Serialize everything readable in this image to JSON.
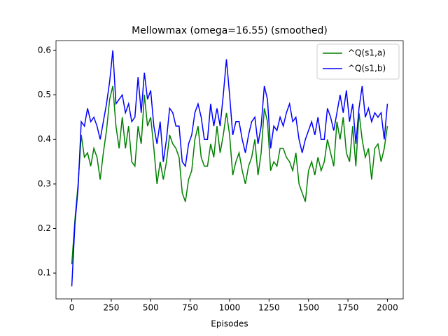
{
  "chart_data": {
    "type": "line",
    "title": "Mellowmax (omega=16.55) (smoothed)",
    "xlabel": "Episodes",
    "x": [
      0,
      20,
      40,
      60,
      80,
      100,
      120,
      140,
      160,
      180,
      200,
      220,
      240,
      260,
      280,
      300,
      320,
      340,
      360,
      380,
      400,
      420,
      440,
      460,
      480,
      500,
      520,
      540,
      560,
      580,
      600,
      620,
      640,
      660,
      680,
      700,
      720,
      740,
      760,
      780,
      800,
      820,
      840,
      860,
      880,
      900,
      920,
      940,
      960,
      980,
      1000,
      1020,
      1040,
      1060,
      1080,
      1100,
      1120,
      1140,
      1160,
      1180,
      1200,
      1220,
      1240,
      1260,
      1280,
      1300,
      1320,
      1340,
      1360,
      1380,
      1400,
      1420,
      1440,
      1460,
      1480,
      1500,
      1520,
      1540,
      1560,
      1580,
      1600,
      1620,
      1640,
      1660,
      1680,
      1700,
      1720,
      1740,
      1760,
      1780,
      1800,
      1820,
      1840,
      1860,
      1880,
      1900,
      1920,
      1940,
      1960,
      1980,
      2000
    ],
    "series": [
      {
        "name": "^Q(s1,a)",
        "color": "#008000",
        "values": [
          0.12,
          0.22,
          0.3,
          0.41,
          0.36,
          0.37,
          0.34,
          0.38,
          0.36,
          0.31,
          0.37,
          0.42,
          0.49,
          0.52,
          0.43,
          0.38,
          0.45,
          0.38,
          0.43,
          0.35,
          0.34,
          0.43,
          0.39,
          0.5,
          0.43,
          0.45,
          0.38,
          0.3,
          0.35,
          0.31,
          0.35,
          0.41,
          0.39,
          0.38,
          0.36,
          0.28,
          0.26,
          0.31,
          0.33,
          0.4,
          0.43,
          0.36,
          0.34,
          0.34,
          0.39,
          0.36,
          0.43,
          0.37,
          0.41,
          0.46,
          0.41,
          0.32,
          0.35,
          0.37,
          0.33,
          0.3,
          0.34,
          0.36,
          0.4,
          0.32,
          0.37,
          0.47,
          0.44,
          0.33,
          0.35,
          0.34,
          0.38,
          0.38,
          0.36,
          0.35,
          0.33,
          0.37,
          0.3,
          0.28,
          0.26,
          0.33,
          0.35,
          0.32,
          0.36,
          0.33,
          0.35,
          0.4,
          0.37,
          0.34,
          0.44,
          0.4,
          0.45,
          0.37,
          0.35,
          0.43,
          0.34,
          0.46,
          0.4,
          0.36,
          0.38,
          0.31,
          0.38,
          0.39,
          0.35,
          0.38,
          0.43
        ]
      },
      {
        "name": "^Q(s1,b)",
        "color": "#0000ff",
        "values": [
          0.07,
          0.21,
          0.29,
          0.44,
          0.43,
          0.47,
          0.44,
          0.45,
          0.43,
          0.4,
          0.44,
          0.48,
          0.53,
          0.6,
          0.48,
          0.49,
          0.5,
          0.46,
          0.48,
          0.44,
          0.45,
          0.54,
          0.46,
          0.55,
          0.49,
          0.51,
          0.43,
          0.39,
          0.44,
          0.35,
          0.4,
          0.47,
          0.46,
          0.43,
          0.43,
          0.35,
          0.34,
          0.39,
          0.41,
          0.46,
          0.48,
          0.45,
          0.4,
          0.4,
          0.48,
          0.43,
          0.47,
          0.43,
          0.5,
          0.58,
          0.5,
          0.41,
          0.44,
          0.44,
          0.4,
          0.37,
          0.41,
          0.44,
          0.45,
          0.39,
          0.43,
          0.52,
          0.49,
          0.38,
          0.43,
          0.42,
          0.45,
          0.43,
          0.46,
          0.48,
          0.44,
          0.45,
          0.4,
          0.37,
          0.4,
          0.42,
          0.44,
          0.41,
          0.45,
          0.4,
          0.4,
          0.47,
          0.45,
          0.42,
          0.46,
          0.5,
          0.46,
          0.51,
          0.44,
          0.48,
          0.39,
          0.47,
          0.52,
          0.45,
          0.47,
          0.44,
          0.46,
          0.45,
          0.46,
          0.4,
          0.48
        ]
      }
    ],
    "xlim": [
      -100,
      2100
    ],
    "xticks": [
      0,
      250,
      500,
      750,
      1000,
      1250,
      1500,
      1750,
      2000
    ],
    "ylim": [
      0.042,
      0.622
    ],
    "yticks": [
      0.1,
      0.2,
      0.3,
      0.4,
      0.5,
      0.6
    ],
    "legend": "upper right"
  }
}
